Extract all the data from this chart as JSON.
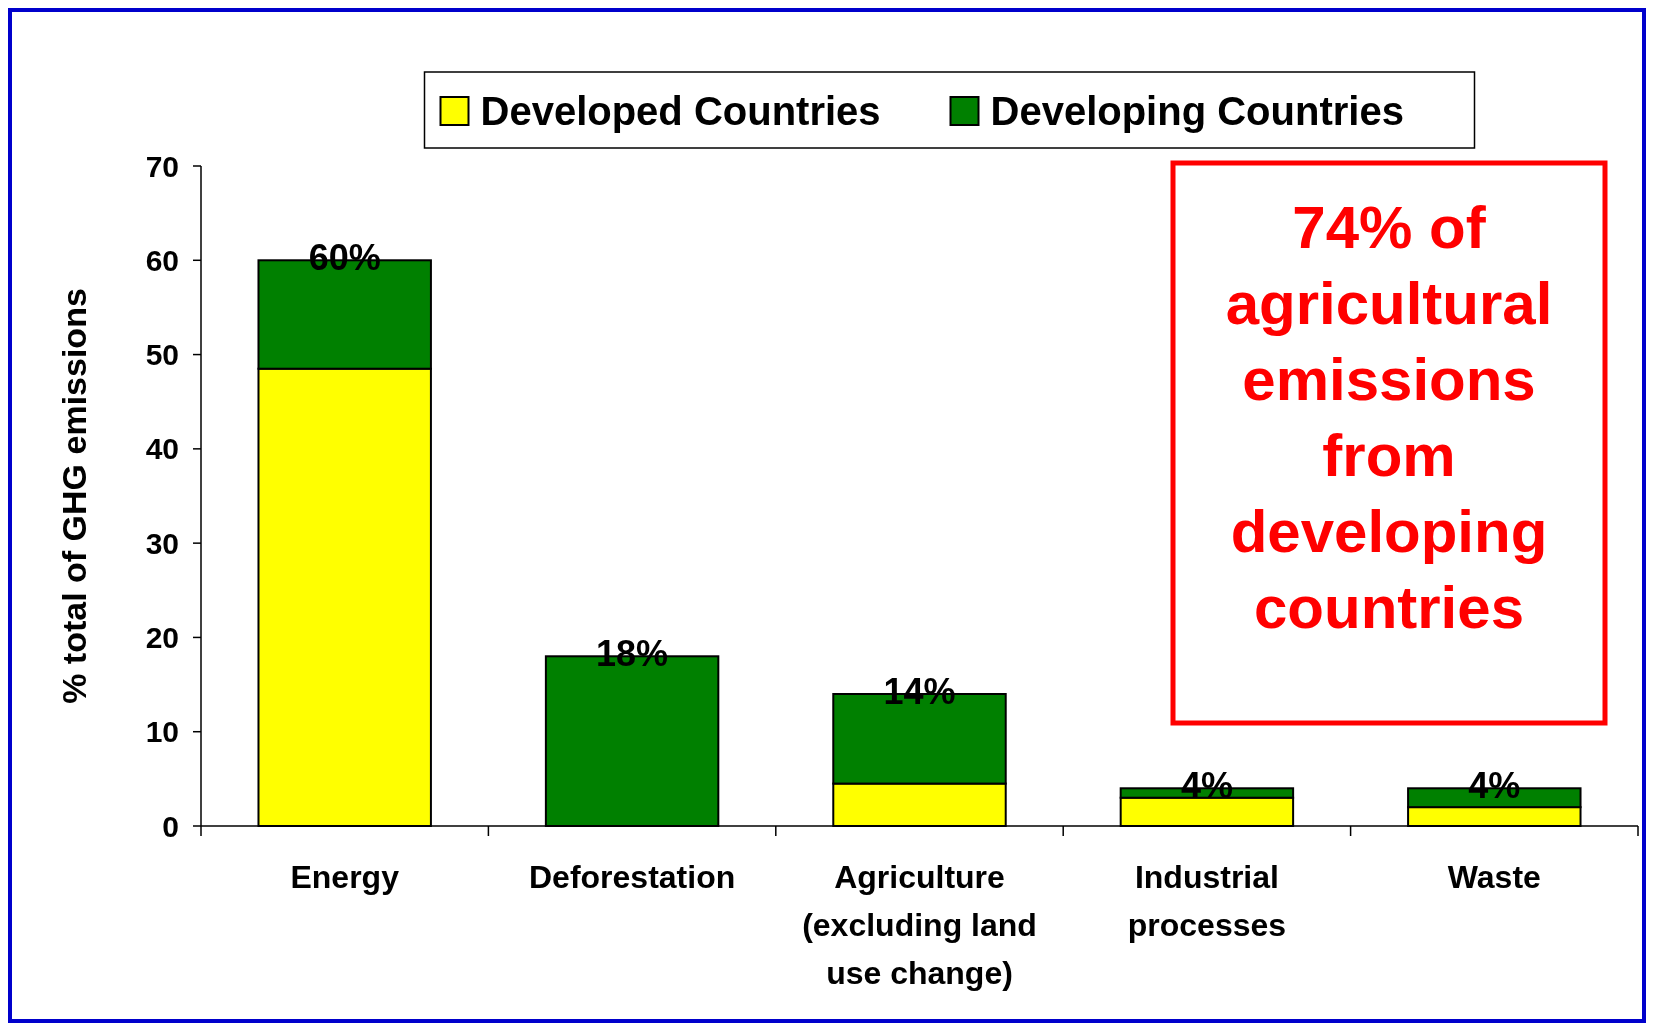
{
  "chart_data": {
    "type": "bar",
    "stacked": true,
    "ylabel": "% total of GHG emissions",
    "categories": [
      "Energy",
      "Deforestation",
      "Agriculture (excluding land use change)",
      "Industrial processes",
      "Waste"
    ],
    "series": [
      {
        "name": "Developed Countries",
        "color": "#ffff00",
        "values": [
          48.5,
          0,
          4.5,
          3,
          2
        ]
      },
      {
        "name": "Developing Countries",
        "color": "#008000",
        "values": [
          11.5,
          18,
          9.5,
          1,
          2
        ]
      }
    ],
    "totals": [
      "60%",
      "18%",
      "14%",
      "4%",
      "4%"
    ],
    "ylim": [
      0,
      70
    ],
    "yticks": [
      0,
      10,
      20,
      30,
      40,
      50,
      60,
      70
    ],
    "legend": "top",
    "grid": false,
    "annotations": [
      "74% of agricultural emissions from developing countries"
    ]
  }
}
